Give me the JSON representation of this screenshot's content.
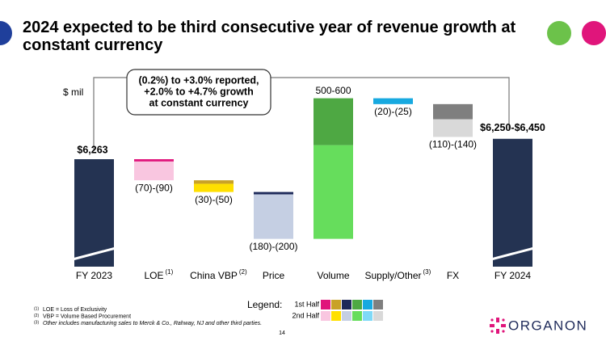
{
  "chart_data": {
    "type": "waterfall",
    "title": "2024 expected to be third consecutive year of revenue growth at constant currency",
    "y_label": "$ mil",
    "callout": [
      "(0.2%) to +3.0% reported,",
      "+2.0% to +4.7% growth",
      "at constant currency"
    ],
    "categories": [
      "FY 2023",
      "LOE",
      "China VBP",
      "Price",
      "Volume",
      "Supply/Other",
      "FX",
      "FY 2024"
    ],
    "category_notes": [
      null,
      "(1)",
      "(2)",
      null,
      null,
      "(3)",
      null,
      null
    ],
    "start": 6263,
    "start_label": "$6,263",
    "end_range": [
      6250,
      6450
    ],
    "end_label": "$6,250-$6,450",
    "total_color": "#243352",
    "ranges": [
      null,
      [
        -70,
        -90
      ],
      [
        -30,
        -50
      ],
      [
        -180,
        -200
      ],
      [
        500,
        600
      ],
      [
        -20,
        -25
      ],
      [
        -110,
        -140
      ],
      null
    ],
    "range_labels": [
      null,
      "(70)-(90)",
      "(30)-(50)",
      "(180)-(200)",
      "500-600",
      "(20)-(25)",
      "(110)-(140)",
      null
    ],
    "legend_title": "Legend:",
    "series": [
      {
        "name": "1st Half",
        "colors": [
          null,
          "#e0157b",
          "#c9a227",
          "#1e2a5a",
          "#4ea843",
          "#17a9e0",
          "#7f7f7f",
          null
        ],
        "values": [
          null,
          -10,
          -15,
          -10,
          200,
          -25,
          -65,
          null
        ]
      },
      {
        "name": "2nd Half",
        "colors": [
          null,
          "#f9c6e0",
          "#ffe000",
          "#c5cfe3",
          "#66dd5c",
          "#7fd9f7",
          "#d9d9d9",
          null
        ],
        "values": [
          null,
          -80,
          -35,
          -190,
          400,
          0,
          -75,
          null
        ]
      }
    ],
    "footnotes": [
      {
        "mark": "(1)",
        "text": "LOE = Loss of Exclusivity"
      },
      {
        "mark": "(2)",
        "text": "VBP = Volume Based Procurement"
      },
      {
        "mark": "(3)",
        "text": "Other includes manufacturing sales to Merck & Co., Rahway, NJ and other third parties."
      }
    ],
    "page_number": "14",
    "logo": "ORGANON"
  }
}
